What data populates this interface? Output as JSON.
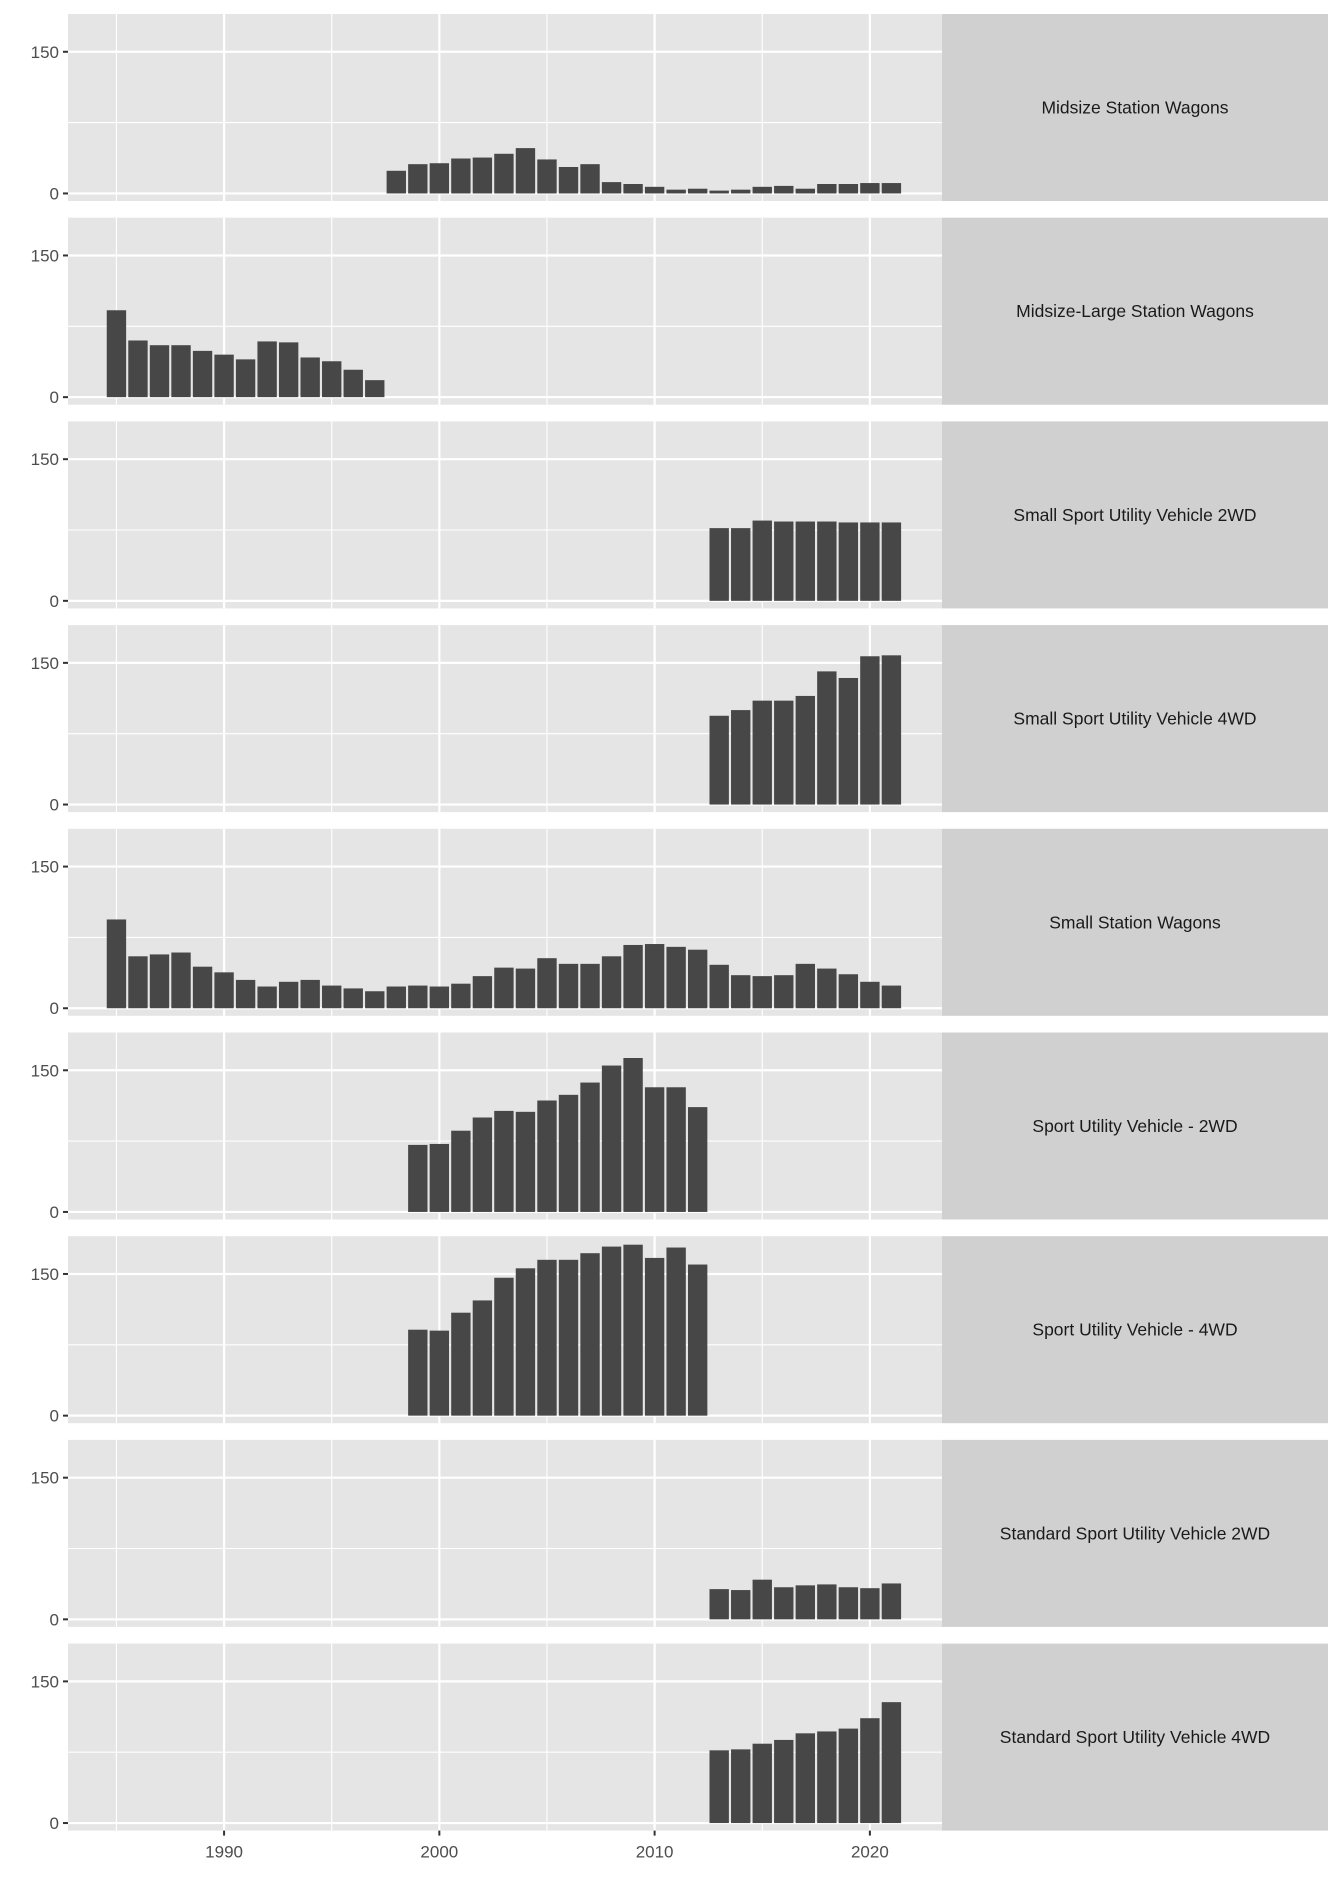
{
  "chart_data": {
    "type": "bar",
    "layout": "faceted, one panel per vehicle class stacked vertically, strip labels on the right",
    "grid": true,
    "xlim": [
      1982.75,
      2023.35
    ],
    "ylim": [
      -8,
      190
    ],
    "x_ticks": [
      1990,
      2000,
      2010,
      2020
    ],
    "x_tick_labels": [
      "1990",
      "2000",
      "2010",
      "2020"
    ],
    "y_ticks": [
      0,
      150
    ],
    "y_tick_labels": [
      "0",
      "150"
    ],
    "xlabel": "",
    "ylabel": "",
    "colors": {
      "bar": "#474747",
      "panel": "#e5e5e5",
      "strip": "#d0d0d0",
      "grid": "#ffffff"
    },
    "panels": [
      {
        "name": "Midsize Station Wagons",
        "start_year": 1998,
        "values": [
          24,
          31,
          32,
          37,
          38,
          42,
          48,
          36,
          28,
          31,
          12,
          10,
          7,
          4,
          5,
          3,
          4,
          7,
          8,
          5,
          10,
          10,
          11,
          11
        ]
      },
      {
        "name": "Midsize-Large Station Wagons",
        "start_year": 1985,
        "values": [
          92,
          60,
          55,
          55,
          49,
          45,
          40,
          59,
          58,
          42,
          38,
          29,
          18
        ]
      },
      {
        "name": "Small Sport Utility Vehicle 2WD",
        "start_year": 2013,
        "values": [
          77,
          77,
          85,
          84,
          84,
          84,
          83,
          83,
          83
        ]
      },
      {
        "name": "Small Sport Utility Vehicle 4WD",
        "start_year": 2013,
        "values": [
          94,
          100,
          110,
          110,
          115,
          141,
          134,
          157,
          158
        ]
      },
      {
        "name": "Small Station Wagons",
        "start_year": 1985,
        "values": [
          94,
          55,
          57,
          59,
          44,
          38,
          30,
          23,
          28,
          30,
          24,
          21,
          18,
          23,
          24,
          23,
          26,
          34,
          43,
          42,
          53,
          47,
          47,
          55,
          67,
          68,
          65,
          62,
          46,
          35,
          34,
          35,
          47,
          42,
          36,
          28,
          24
        ]
      },
      {
        "name": "Sport Utility Vehicle - 2WD",
        "start_year": 1999,
        "values": [
          71,
          72,
          86,
          100,
          107,
          106,
          118,
          124,
          137,
          155,
          163,
          132,
          132,
          111
        ]
      },
      {
        "name": "Sport Utility Vehicle - 4WD",
        "start_year": 1999,
        "values": [
          91,
          90,
          109,
          122,
          146,
          156,
          165,
          165,
          172,
          179,
          181,
          167,
          178,
          160
        ]
      },
      {
        "name": "Standard Sport Utility Vehicle 2WD",
        "start_year": 2013,
        "values": [
          32,
          31,
          42,
          34,
          36,
          37,
          34,
          33,
          38
        ]
      },
      {
        "name": "Standard Sport Utility Vehicle 4WD",
        "start_year": 2013,
        "values": [
          77,
          78,
          84,
          88,
          95,
          97,
          100,
          111,
          128
        ]
      }
    ]
  }
}
